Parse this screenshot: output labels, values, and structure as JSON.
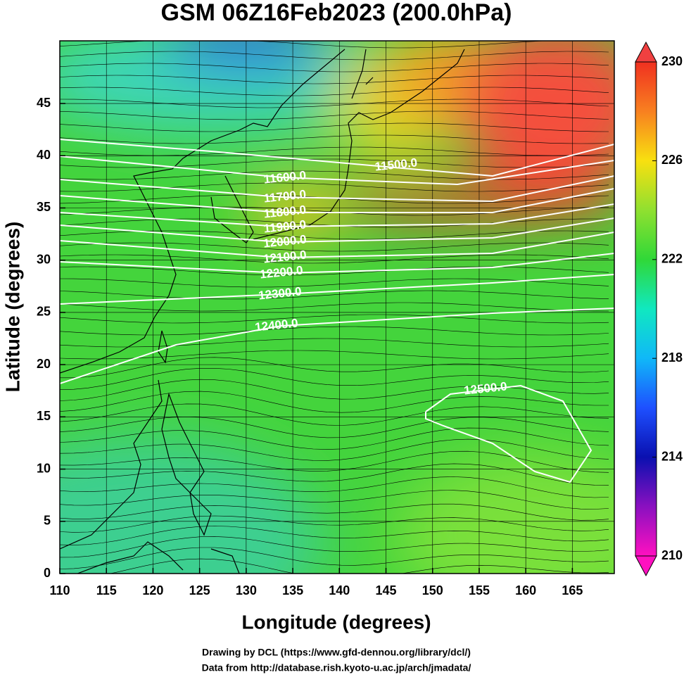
{
  "chart_data": {
    "type": "contour",
    "title": "GSM 06Z16Feb2023 (200.0hPa)",
    "x_label": "Longitude (degrees)",
    "y_label": "Latitude  (degrees)",
    "xlim": [
      110,
      169.5
    ],
    "ylim": [
      0,
      51
    ],
    "xticks": [
      110,
      115,
      120,
      125,
      130,
      135,
      140,
      145,
      150,
      155,
      160,
      165
    ],
    "yticks": [
      0,
      5,
      10,
      15,
      20,
      25,
      30,
      35,
      40,
      45
    ],
    "grid": true,
    "colorbar": {
      "lim": [
        210,
        230
      ],
      "ticks": [
        210,
        214,
        218,
        222,
        226,
        230
      ]
    },
    "contours": [
      {
        "value": 11500,
        "label": "11500.0"
      },
      {
        "value": 11600,
        "label": "11600.0"
      },
      {
        "value": 11700,
        "label": "11700.0"
      },
      {
        "value": 11800,
        "label": "11800.0"
      },
      {
        "value": 11900,
        "label": "11900.0"
      },
      {
        "value": 12000,
        "label": "12000.0"
      },
      {
        "value": 12100,
        "label": "12100.0"
      },
      {
        "value": 12200,
        "label": "12200.0"
      },
      {
        "value": 12300,
        "label": "12300.0"
      },
      {
        "value": 12400,
        "label": "12400.0"
      },
      {
        "value": 12500,
        "label": "12500.0"
      }
    ],
    "credits": [
      "Drawing by DCL (https://www.gfd-dennou.org/library/dcl/)",
      "Data from http://database.rish.kyoto-u.ac.jp/arch/jmadata/"
    ]
  }
}
